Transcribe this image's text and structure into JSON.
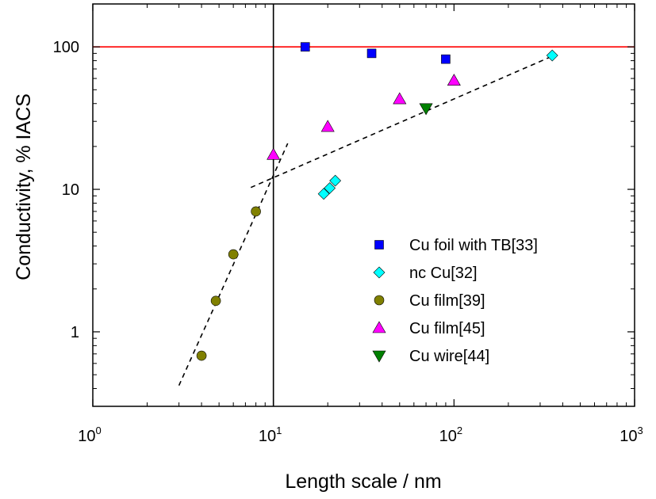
{
  "chart_data": {
    "type": "scatter",
    "xscale": "log",
    "yscale": "log",
    "xlim": [
      1,
      1000
    ],
    "ylim": [
      0.3,
      200
    ],
    "xlabel": "Length scale / nm",
    "ylabel": "Conductivity, % IACS",
    "x_ticks": [
      {
        "base": "10",
        "exp": "0",
        "value": 1
      },
      {
        "base": "10",
        "exp": "1",
        "value": 10
      },
      {
        "base": "10",
        "exp": "2",
        "value": 100
      },
      {
        "base": "10",
        "exp": "3",
        "value": 1000
      }
    ],
    "y_ticks": [
      {
        "label": "1",
        "value": 1
      },
      {
        "label": "10",
        "value": 10
      },
      {
        "label": "100",
        "value": 100
      }
    ],
    "legend_position": "bottom-right",
    "series": [
      {
        "name": "Cu foil with TB[33]",
        "marker": "square",
        "color": "#0000ff",
        "points": [
          [
            15,
            100
          ],
          [
            35,
            90
          ],
          [
            90,
            82
          ]
        ]
      },
      {
        "name": "nc Cu[32]",
        "marker": "diamond",
        "color": "#00ffff",
        "points": [
          [
            19,
            9.3
          ],
          [
            20.5,
            10.2
          ],
          [
            22,
            11.5
          ],
          [
            350,
            87
          ]
        ]
      },
      {
        "name": "Cu film[39]",
        "marker": "circle",
        "color": "#808000",
        "points": [
          [
            4,
            0.68
          ],
          [
            4.8,
            1.65
          ],
          [
            6,
            3.5
          ],
          [
            8,
            7
          ]
        ]
      },
      {
        "name": "Cu film[45]",
        "marker": "triangle-up",
        "color": "#ff00ff",
        "points": [
          [
            10,
            17.5
          ],
          [
            20,
            27.5
          ],
          [
            50,
            43
          ],
          [
            100,
            58
          ]
        ]
      },
      {
        "name": "Cu wire[44]",
        "marker": "triangle-down",
        "color": "#008000",
        "points": [
          [
            70,
            37
          ]
        ]
      }
    ],
    "reference_lines": [
      {
        "orientation": "horizontal",
        "value": 100,
        "color": "#ff0000"
      },
      {
        "orientation": "vertical",
        "value": 10,
        "color": "#000000"
      }
    ],
    "trend_lines": [
      {
        "style": "dashed",
        "points": [
          [
            3,
            0.42
          ],
          [
            12,
            21
          ]
        ]
      },
      {
        "style": "dashed",
        "points": [
          [
            7.5,
            10.3
          ],
          [
            350,
            86
          ]
        ]
      }
    ]
  }
}
